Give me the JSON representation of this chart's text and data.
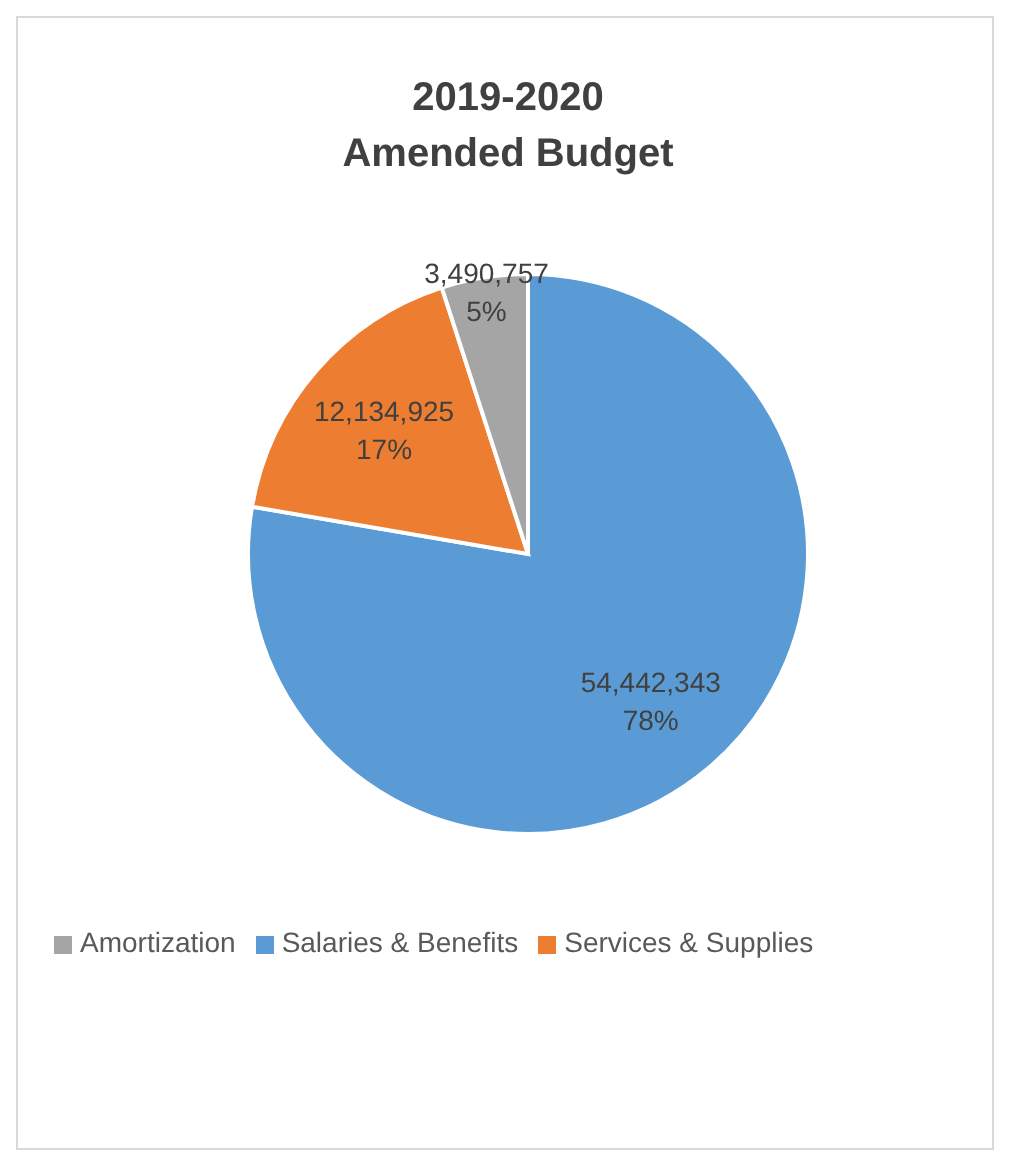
{
  "chart_data": {
    "type": "pie",
    "title": "2019-2020\nAmended Budget",
    "categories": [
      "Salaries & Benefits",
      "Services & Supplies",
      "Amortization"
    ],
    "values": [
      54442343,
      12134925,
      3490757
    ],
    "colors": [
      "#5b9bd5",
      "#ed7d31",
      "#a5a5a5"
    ],
    "value_labels": [
      "54,442,343\n78%",
      "12,134,925\n17%",
      "3,490,757\n5%"
    ],
    "legend": "bottom"
  }
}
